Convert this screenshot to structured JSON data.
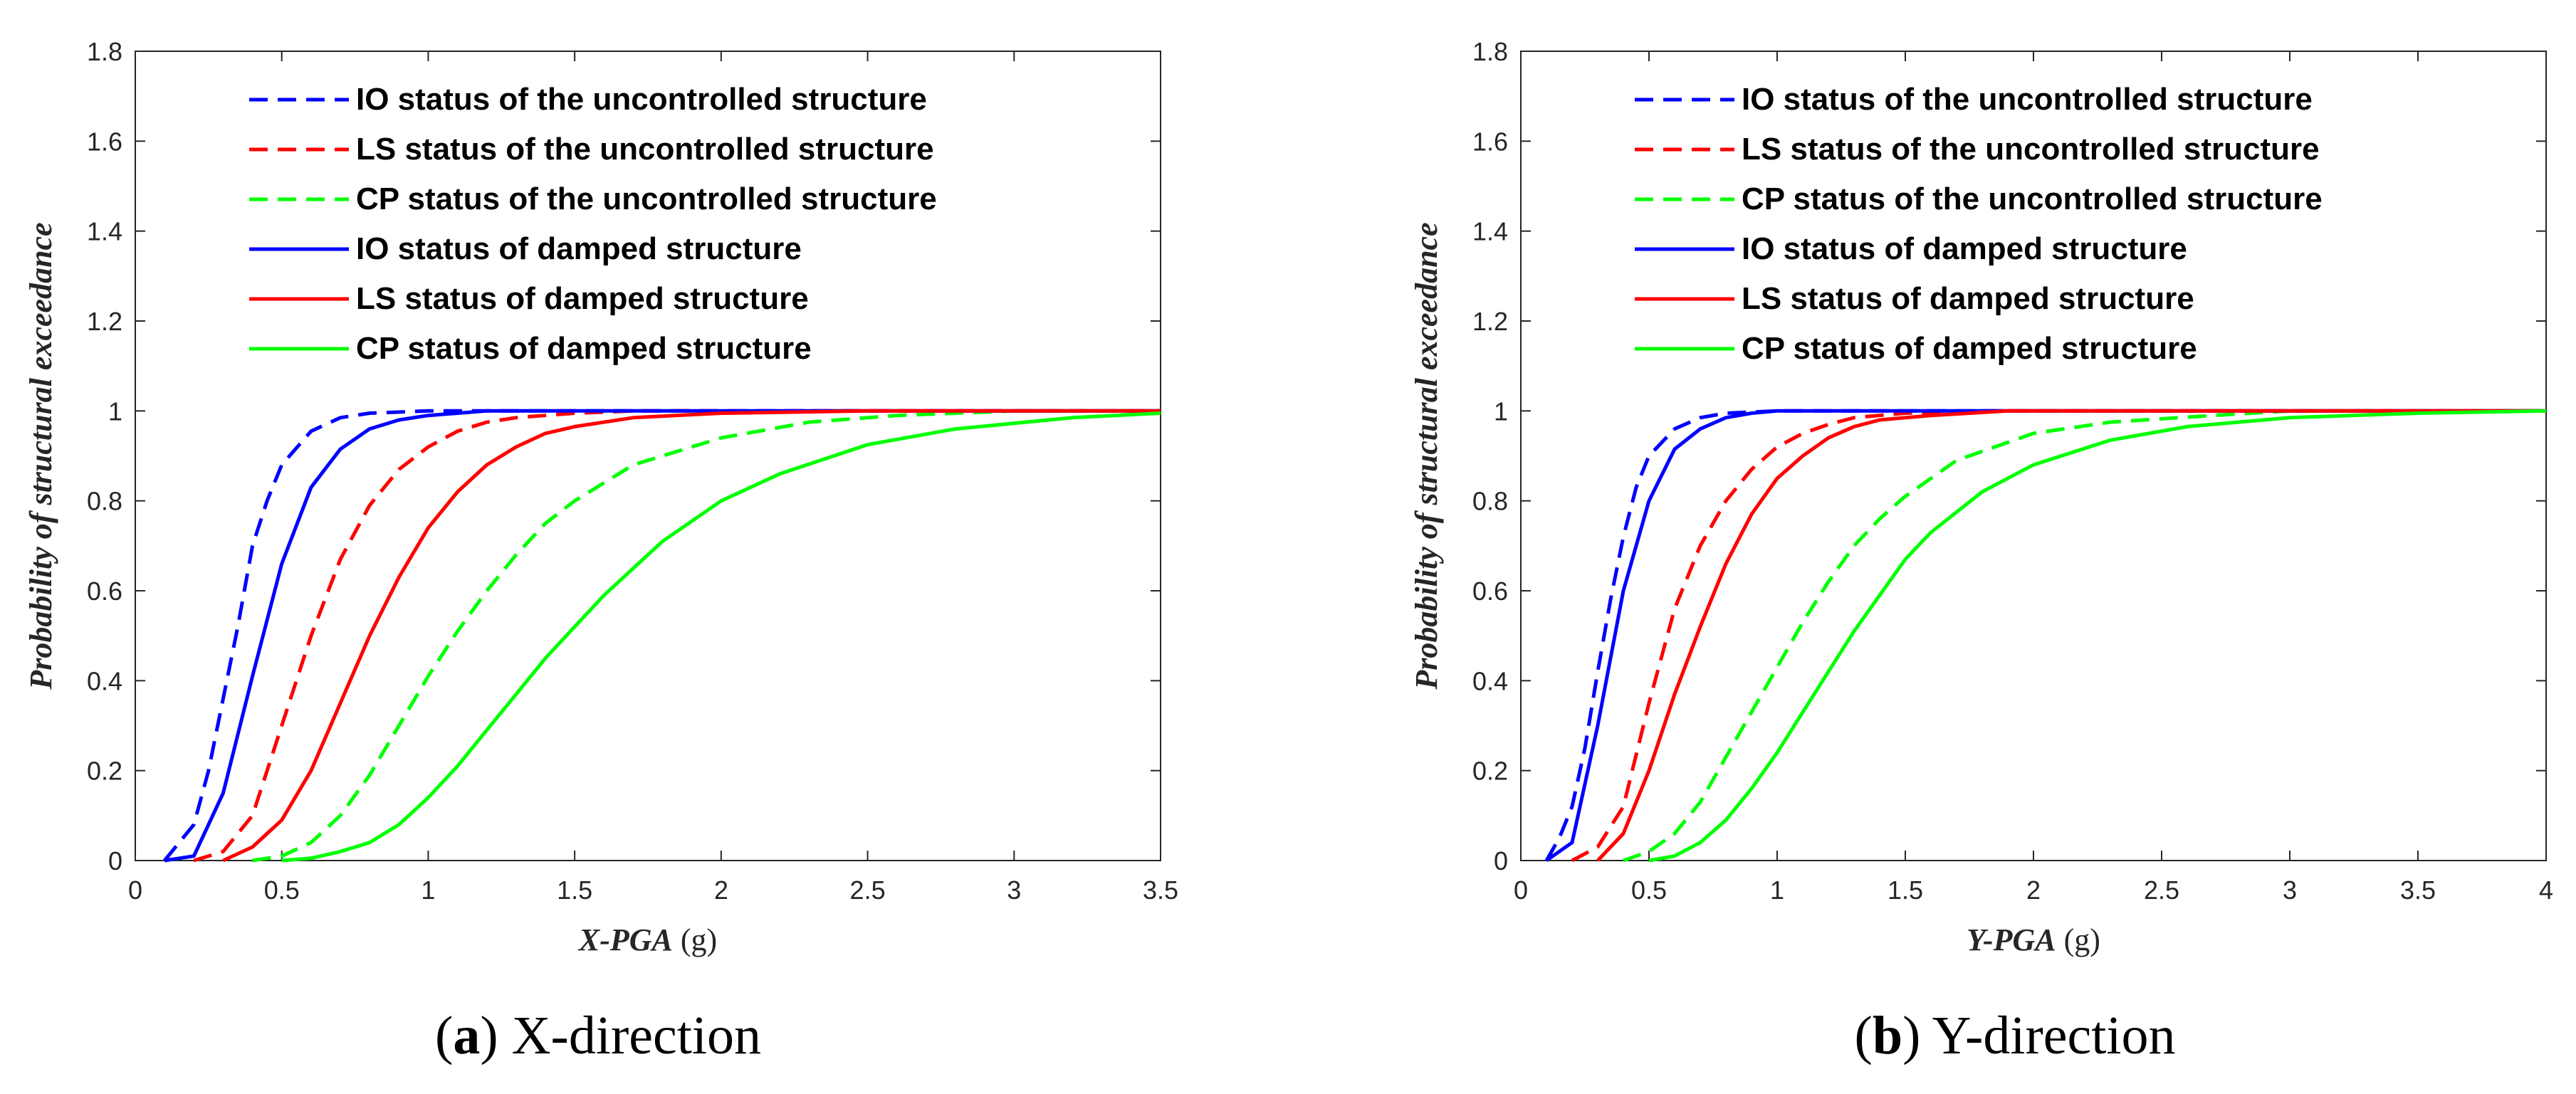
{
  "chart_data": [
    {
      "type": "line",
      "caption_letter": "a",
      "caption_text": " X-direction",
      "xlabel_italic": "X-PGA",
      "xlabel_unit": " (g)",
      "ylabel": "Probability of structural exceedance",
      "xlim": [
        0,
        3.5
      ],
      "ylim": [
        0,
        1.8
      ],
      "xticks": [
        0,
        0.5,
        1,
        1.5,
        2,
        2.5,
        3,
        3.5
      ],
      "xtick_labels": [
        "0",
        "0.5",
        "1",
        "1.5",
        "2",
        "2.5",
        "3",
        "3.5"
      ],
      "yticks": [
        0,
        0.2,
        0.4,
        0.6,
        0.8,
        1,
        1.2,
        1.4,
        1.6,
        1.8
      ],
      "ytick_labels": [
        "0",
        "0.2",
        "0.4",
        "0.6",
        "0.8",
        "1",
        "1.2",
        "1.4",
        "1.6",
        "1.8"
      ],
      "grid": false,
      "legend_position": "top-left",
      "series": [
        {
          "name": "IO status of the uncontrolled structure",
          "color": "#0000ff",
          "style": "dashed",
          "x": [
            0.1,
            0.15,
            0.2,
            0.25,
            0.3,
            0.35,
            0.4,
            0.45,
            0.5,
            0.6,
            0.7,
            0.8,
            1.0,
            1.2,
            1.5,
            2.0,
            3.5
          ],
          "y": [
            0.0,
            0.04,
            0.08,
            0.2,
            0.36,
            0.52,
            0.7,
            0.8,
            0.88,
            0.955,
            0.985,
            0.995,
            1.0,
            1.0,
            1.0,
            1.0,
            1.0
          ]
        },
        {
          "name": "LS status of the uncontrolled structure",
          "color": "#ff0000",
          "style": "dashed",
          "x": [
            0.2,
            0.3,
            0.4,
            0.5,
            0.6,
            0.7,
            0.8,
            0.9,
            1.0,
            1.1,
            1.2,
            1.3,
            1.5,
            1.7,
            2.0,
            3.5
          ],
          "y": [
            0.0,
            0.02,
            0.1,
            0.3,
            0.5,
            0.67,
            0.79,
            0.87,
            0.92,
            0.955,
            0.975,
            0.985,
            0.995,
            1.0,
            1.0,
            1.0
          ]
        },
        {
          "name": "CP status of the uncontrolled structure",
          "color": "#00ff00",
          "style": "dashed",
          "x": [
            0.4,
            0.5,
            0.6,
            0.7,
            0.8,
            0.9,
            1.0,
            1.1,
            1.2,
            1.3,
            1.4,
            1.5,
            1.7,
            2.0,
            2.3,
            2.6,
            3.0,
            3.5
          ],
          "y": [
            0.0,
            0.01,
            0.04,
            0.1,
            0.19,
            0.3,
            0.41,
            0.51,
            0.6,
            0.68,
            0.75,
            0.8,
            0.88,
            0.94,
            0.975,
            0.99,
            1.0,
            1.0
          ]
        },
        {
          "name": "IO status of damped structure",
          "color": "#0000ff",
          "style": "solid",
          "x": [
            0.1,
            0.2,
            0.3,
            0.4,
            0.5,
            0.6,
            0.7,
            0.8,
            0.9,
            1.0,
            1.2,
            1.5,
            2.0,
            3.5
          ],
          "y": [
            0.0,
            0.01,
            0.15,
            0.41,
            0.66,
            0.83,
            0.915,
            0.96,
            0.98,
            0.99,
            1.0,
            1.0,
            1.0,
            1.0
          ]
        },
        {
          "name": "LS status of damped structure",
          "color": "#ff0000",
          "style": "solid",
          "x": [
            0.3,
            0.4,
            0.5,
            0.6,
            0.7,
            0.8,
            0.9,
            1.0,
            1.1,
            1.2,
            1.3,
            1.4,
            1.5,
            1.7,
            2.0,
            2.5,
            3.5
          ],
          "y": [
            0.0,
            0.03,
            0.09,
            0.2,
            0.35,
            0.5,
            0.63,
            0.74,
            0.82,
            0.88,
            0.92,
            0.95,
            0.965,
            0.985,
            0.995,
            1.0,
            1.0
          ]
        },
        {
          "name": "CP status of damped structure",
          "color": "#00ff00",
          "style": "solid",
          "x": [
            0.5,
            0.6,
            0.7,
            0.8,
            0.9,
            1.0,
            1.1,
            1.2,
            1.3,
            1.4,
            1.5,
            1.6,
            1.8,
            2.0,
            2.2,
            2.5,
            2.8,
            3.2,
            3.5
          ],
          "y": [
            0.0,
            0.005,
            0.02,
            0.04,
            0.08,
            0.14,
            0.21,
            0.29,
            0.37,
            0.45,
            0.52,
            0.59,
            0.71,
            0.8,
            0.86,
            0.925,
            0.96,
            0.985,
            0.995
          ]
        }
      ]
    },
    {
      "type": "line",
      "caption_letter": "b",
      "caption_text": " Y-direction",
      "xlabel_italic": "Y-PGA",
      "xlabel_unit": " (g)",
      "ylabel": "Probability of structural exceedance",
      "xlim": [
        0,
        4
      ],
      "ylim": [
        0,
        1.8
      ],
      "xticks": [
        0,
        0.5,
        1,
        1.5,
        2,
        2.5,
        3,
        3.5,
        4
      ],
      "xtick_labels": [
        "0",
        "0.5",
        "1",
        "1.5",
        "2",
        "2.5",
        "3",
        "3.5",
        "4"
      ],
      "yticks": [
        0,
        0.2,
        0.4,
        0.6,
        0.8,
        1,
        1.2,
        1.4,
        1.6,
        1.8
      ],
      "ytick_labels": [
        "0",
        "0.2",
        "0.4",
        "0.6",
        "0.8",
        "1",
        "1.2",
        "1.4",
        "1.6",
        "1.8"
      ],
      "grid": false,
      "legend_position": "top-left",
      "series": [
        {
          "name": "IO status of the uncontrolled structure",
          "color": "#0000ff",
          "style": "dashed",
          "x": [
            0.1,
            0.15,
            0.2,
            0.25,
            0.3,
            0.35,
            0.4,
            0.45,
            0.5,
            0.6,
            0.7,
            0.8,
            1.0,
            1.2,
            1.5,
            4.0
          ],
          "y": [
            0.0,
            0.05,
            0.12,
            0.25,
            0.42,
            0.58,
            0.72,
            0.83,
            0.9,
            0.96,
            0.985,
            0.995,
            1.0,
            1.0,
            1.0,
            1.0
          ]
        },
        {
          "name": "LS status of the uncontrolled structure",
          "color": "#ff0000",
          "style": "dashed",
          "x": [
            0.2,
            0.3,
            0.4,
            0.5,
            0.6,
            0.7,
            0.8,
            0.9,
            1.0,
            1.1,
            1.2,
            1.3,
            1.5,
            1.8,
            2.2,
            4.0
          ],
          "y": [
            0.0,
            0.03,
            0.12,
            0.35,
            0.56,
            0.7,
            0.8,
            0.87,
            0.92,
            0.95,
            0.97,
            0.985,
            0.995,
            1.0,
            1.0,
            1.0
          ]
        },
        {
          "name": "CP status of the uncontrolled structure",
          "color": "#00ff00",
          "style": "dashed",
          "x": [
            0.4,
            0.5,
            0.6,
            0.7,
            0.8,
            0.9,
            1.0,
            1.1,
            1.2,
            1.3,
            1.4,
            1.5,
            1.7,
            2.0,
            2.3,
            2.7,
            3.0,
            3.5,
            4.0
          ],
          "y": [
            0.0,
            0.02,
            0.06,
            0.13,
            0.23,
            0.33,
            0.43,
            0.53,
            0.62,
            0.7,
            0.76,
            0.81,
            0.89,
            0.95,
            0.975,
            0.99,
            1.0,
            1.0,
            1.0
          ]
        },
        {
          "name": "IO status of damped structure",
          "color": "#0000ff",
          "style": "solid",
          "x": [
            0.1,
            0.2,
            0.3,
            0.35,
            0.4,
            0.5,
            0.6,
            0.7,
            0.8,
            0.9,
            1.0,
            1.2,
            1.5,
            4.0
          ],
          "y": [
            0.0,
            0.04,
            0.3,
            0.45,
            0.6,
            0.8,
            0.915,
            0.96,
            0.985,
            0.995,
            1.0,
            1.0,
            1.0,
            1.0
          ]
        },
        {
          "name": "LS status of damped structure",
          "color": "#ff0000",
          "style": "solid",
          "x": [
            0.3,
            0.4,
            0.5,
            0.6,
            0.7,
            0.8,
            0.9,
            1.0,
            1.1,
            1.2,
            1.3,
            1.4,
            1.6,
            1.9,
            2.3,
            4.0
          ],
          "y": [
            0.0,
            0.06,
            0.2,
            0.37,
            0.52,
            0.66,
            0.77,
            0.85,
            0.9,
            0.94,
            0.965,
            0.98,
            0.99,
            1.0,
            1.0,
            1.0
          ]
        },
        {
          "name": "CP status of damped structure",
          "color": "#00ff00",
          "style": "solid",
          "x": [
            0.5,
            0.6,
            0.7,
            0.8,
            0.9,
            1.0,
            1.1,
            1.2,
            1.3,
            1.4,
            1.5,
            1.6,
            1.8,
            2.0,
            2.3,
            2.6,
            3.0,
            3.5,
            4.0
          ],
          "y": [
            0.0,
            0.01,
            0.04,
            0.09,
            0.16,
            0.24,
            0.33,
            0.42,
            0.51,
            0.59,
            0.67,
            0.73,
            0.82,
            0.88,
            0.935,
            0.965,
            0.985,
            0.995,
            1.0
          ]
        }
      ]
    }
  ]
}
